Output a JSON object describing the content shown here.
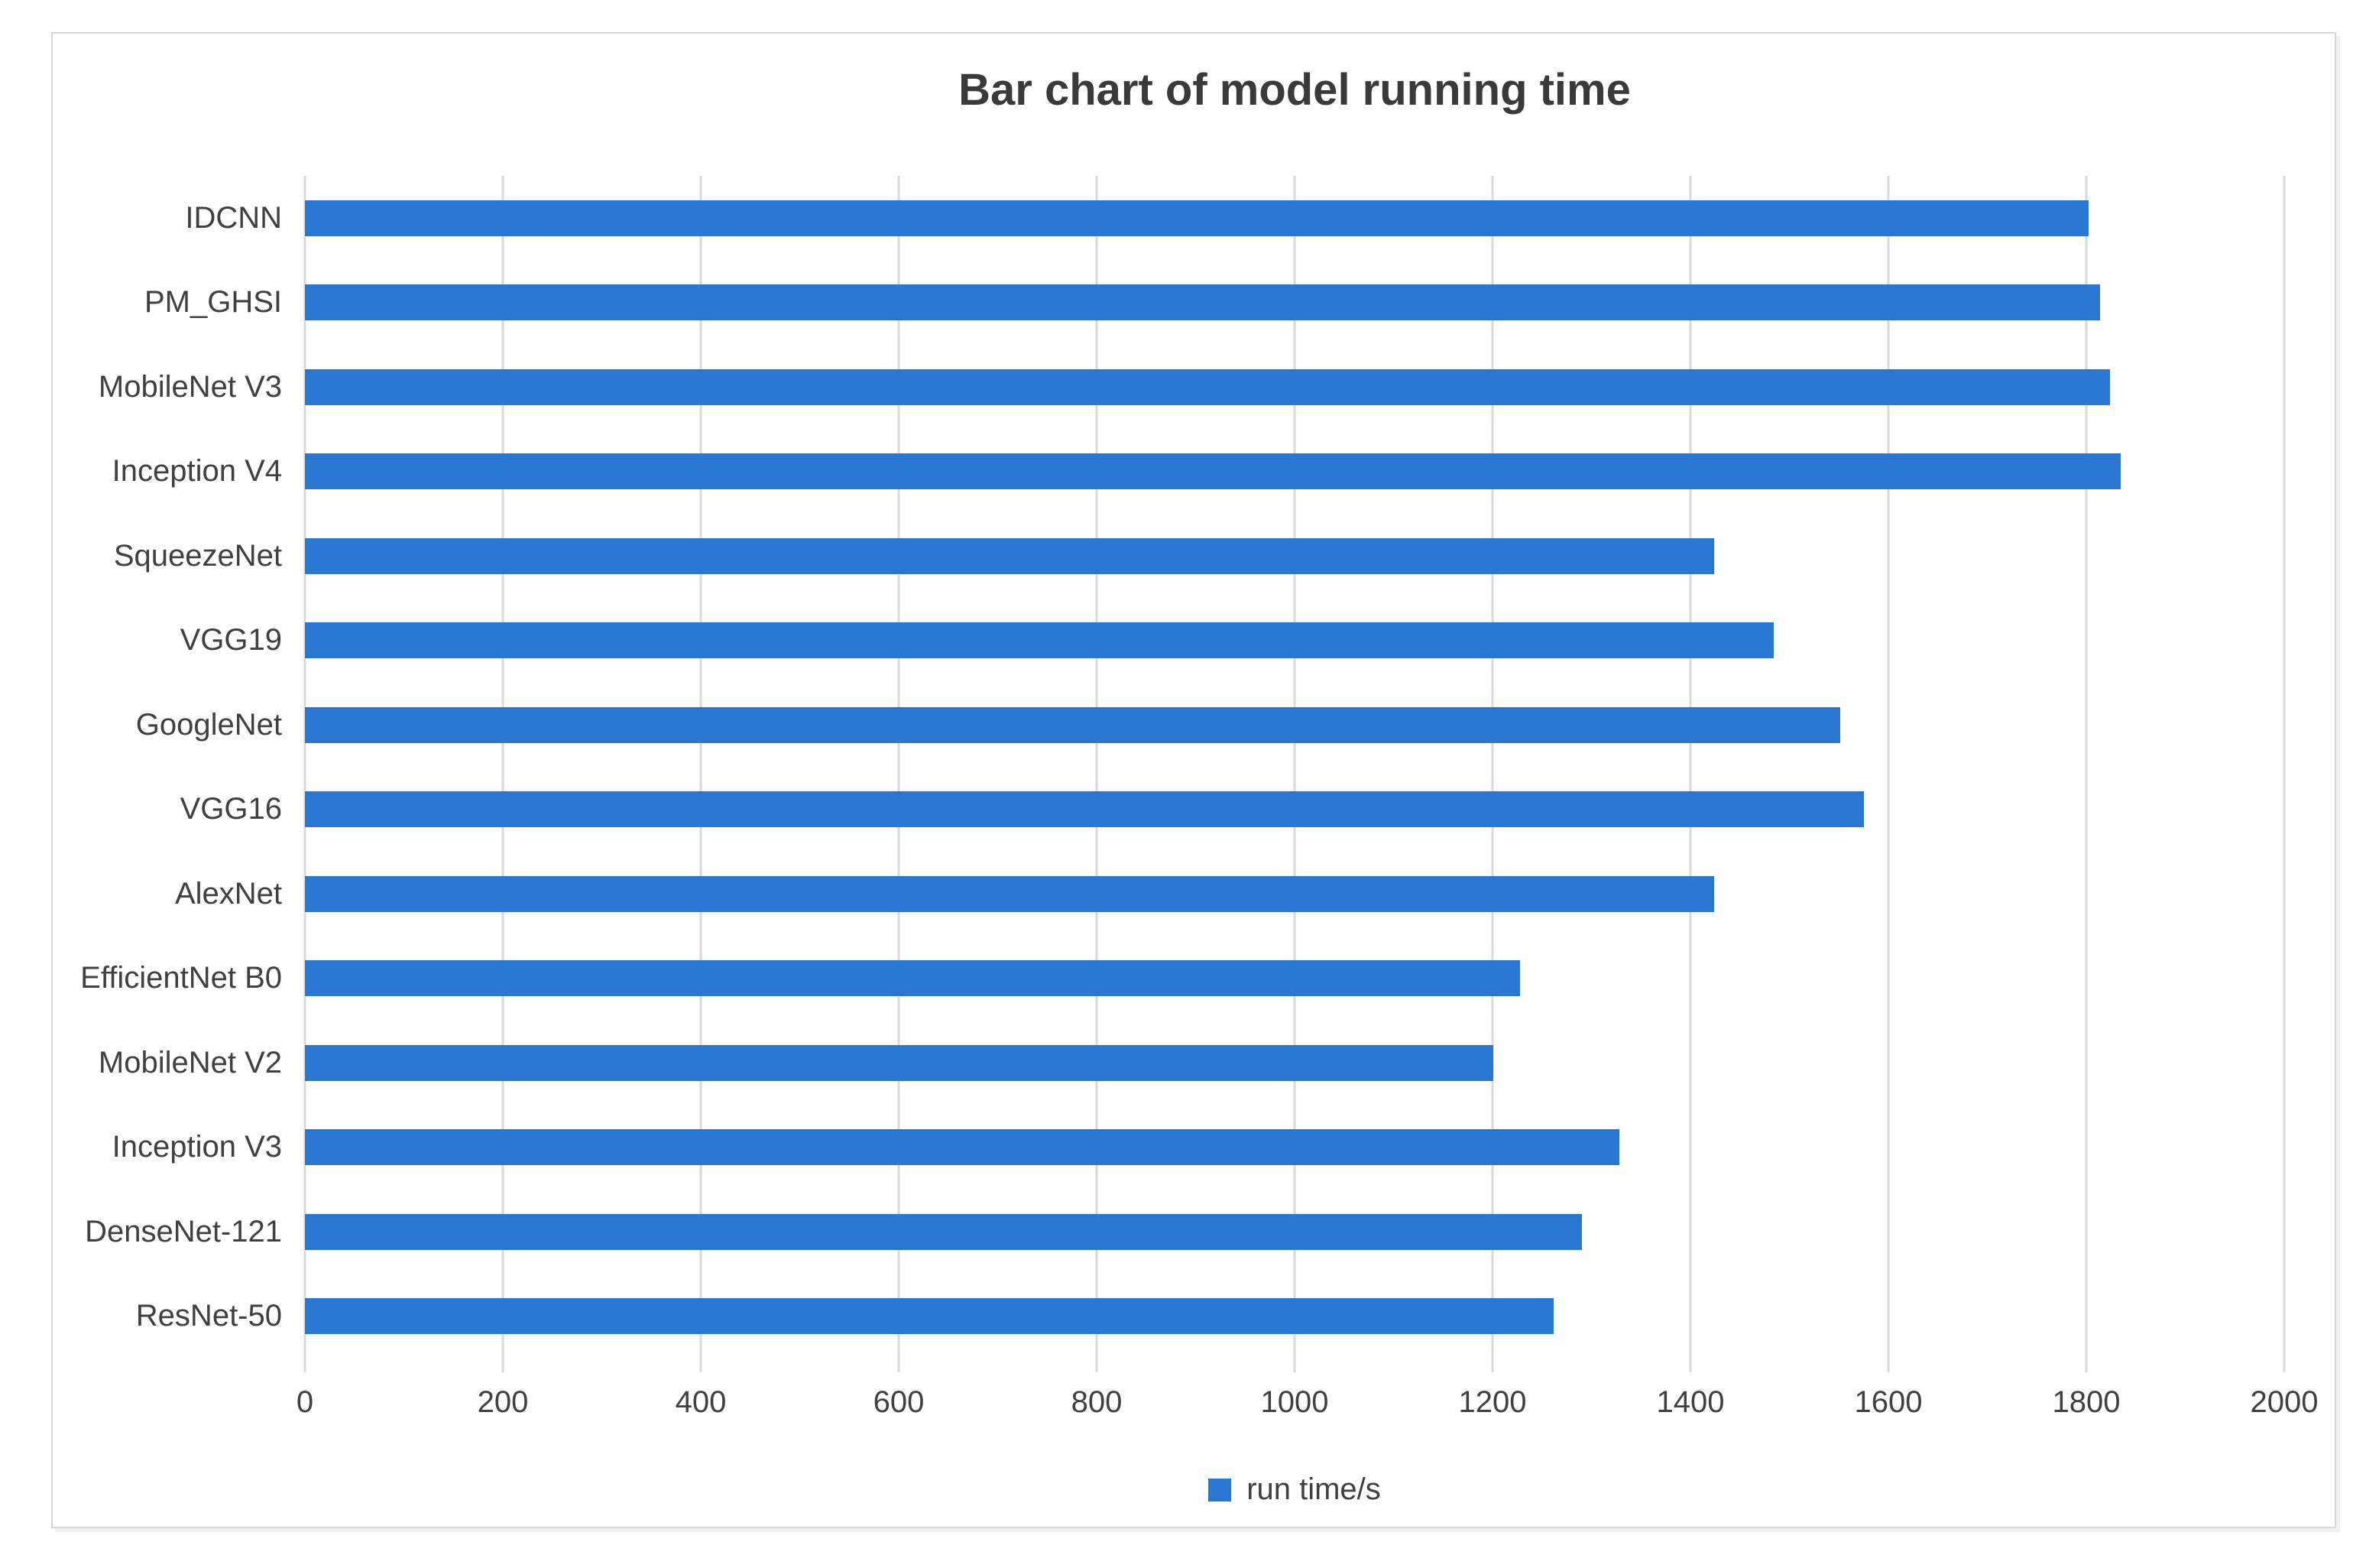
{
  "chart": {
    "colors": {
      "bar": "#2976d3",
      "grid": "#d9d9d9",
      "frame_border": "#d7d7d7",
      "title_text": "#3a3a3a",
      "axis_text": "#404040"
    }
  },
  "chart_data": {
    "type": "bar",
    "orientation": "horizontal",
    "title": "Bar chart of model running time",
    "categories": [
      "IDCNN",
      "PM_GHSI",
      "MobileNet V3",
      "Inception V4",
      "SqueezeNet",
      "VGG19",
      "GoogleNet",
      "VGG16",
      "AlexNet",
      "EfficientNet B0",
      "MobileNet V2",
      "Inception V3",
      "DenseNet-121",
      "ResNet-50"
    ],
    "values": [
      1802,
      1814,
      1824,
      1835,
      1424,
      1484,
      1551,
      1575,
      1424,
      1228,
      1201,
      1328,
      1290,
      1262
    ],
    "xlabel": "",
    "ylabel": "",
    "xlim": [
      0,
      2000
    ],
    "xticks": [
      0,
      200,
      400,
      600,
      800,
      1000,
      1200,
      1400,
      1600,
      1800,
      2000
    ],
    "legend": [
      "run time/s"
    ],
    "legend_position": "bottom",
    "grid": true
  }
}
